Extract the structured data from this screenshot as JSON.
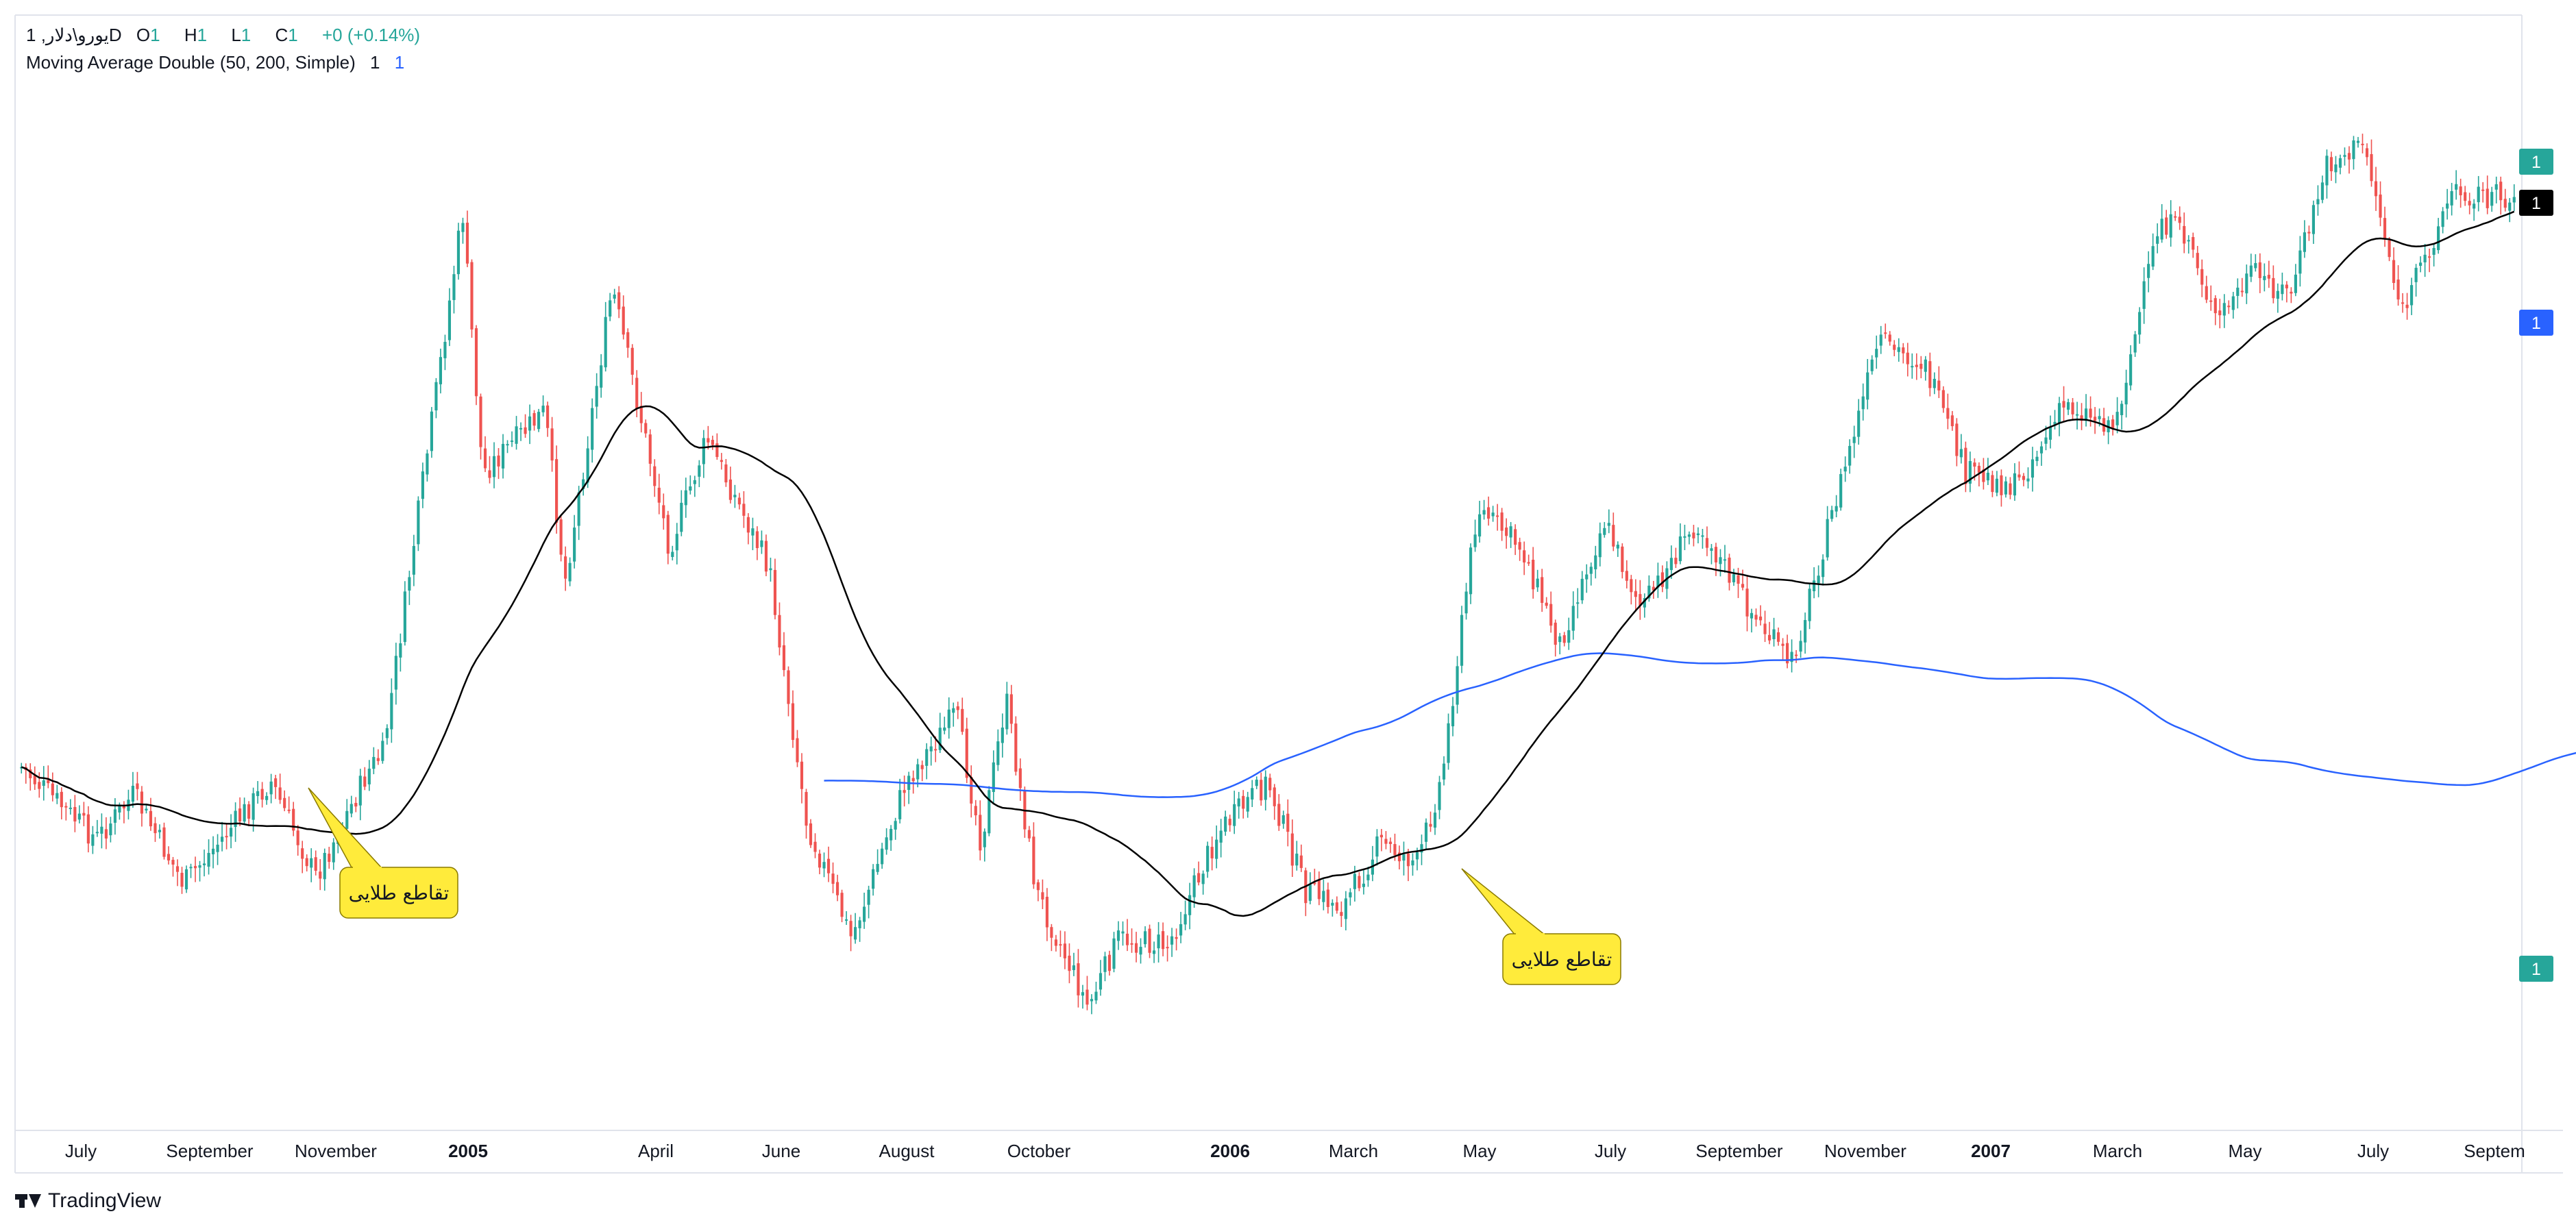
{
  "header": {
    "symbol_line": "یورو\\دلار, 1D",
    "open_label": "O",
    "open_value": "1",
    "high_label": "H",
    "high_value": "1",
    "low_label": "L",
    "low_value": "1",
    "close_label": "C",
    "close_value": "1",
    "change": "+0 (+0.14%)",
    "indicator_name": "Moving Average Double (50, 200, Simple)",
    "indicator_value_1": "1",
    "indicator_value_2": "1"
  },
  "branding": {
    "logo_text": "TradingView"
  },
  "colors": {
    "up": "#26a69a",
    "down": "#ef5350",
    "ma_fast": "#000000",
    "ma_slow": "#2962ff",
    "callout_fill": "#ffeb3b",
    "background": "#ffffff"
  },
  "chart_data": {
    "type": "candlestick",
    "interval": "1D",
    "x_axis_labels": [
      "July",
      "September",
      "November",
      "2005",
      "April",
      "June",
      "August",
      "October",
      "2006",
      "March",
      "May",
      "July",
      "September",
      "November",
      "2007",
      "March",
      "May",
      "July",
      "Septem"
    ],
    "price_labels": [
      {
        "text": "1",
        "color": "#26a69a",
        "text_color": "#ffffff"
      },
      {
        "text": "1",
        "color": "#000000",
        "text_color": "#ffffff"
      },
      {
        "text": "1",
        "color": "#2962ff",
        "text_color": "#ffffff"
      },
      {
        "text": "1",
        "color": "#26a69a",
        "text_color": "#ffffff"
      }
    ],
    "series": [
      {
        "name": "MA 50",
        "color": "#000000"
      },
      {
        "name": "MA 200",
        "color": "#2962ff"
      }
    ],
    "annotations": [
      {
        "text": "تقاطع طلایی"
      },
      {
        "text": "تقاطع طلایی"
      }
    ],
    "grid": false
  }
}
